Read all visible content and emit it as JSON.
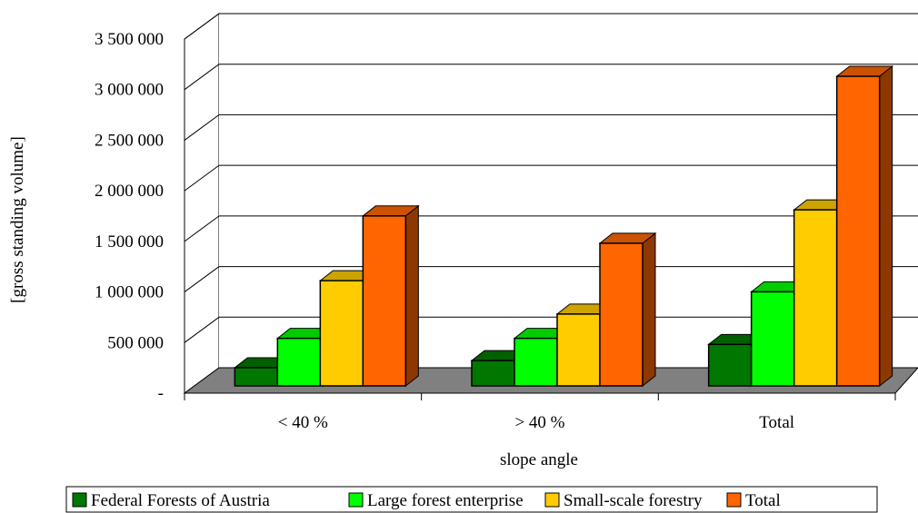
{
  "chart_data": {
    "type": "bar",
    "categories": [
      "< 40 %",
      "> 40 %",
      "Total"
    ],
    "series": [
      {
        "name": "Federal Forests of Austria",
        "values": [
          180000,
          250000,
          410000
        ]
      },
      {
        "name": "Large forest enterprise",
        "values": [
          470000,
          470000,
          930000
        ]
      },
      {
        "name": "Small-scale forestry",
        "values": [
          1040000,
          710000,
          1740000
        ]
      },
      {
        "name": "Total",
        "values": [
          1680000,
          1410000,
          3060000
        ]
      }
    ],
    "xlabel": "slope angle",
    "ylabel": "[gross standing volume]",
    "ylim": [
      0,
      3500000
    ],
    "yticks": [
      0,
      500000,
      1000000,
      1500000,
      2000000,
      2500000,
      3000000,
      3500000
    ],
    "ytick_labels": [
      "-",
      "500 000",
      "1 000 000",
      "1 500 000",
      "2 000 000",
      "2 500 000",
      "3 000 000",
      "3 500 000"
    ],
    "grid": true,
    "legend_position": "bottom",
    "colors": {
      "Federal Forests of Austria": "#007800",
      "Large forest enterprise": "#00ff00",
      "Small-scale forestry": "#ffcc00",
      "Total": "#ff6600",
      "floor": "#808080"
    }
  }
}
